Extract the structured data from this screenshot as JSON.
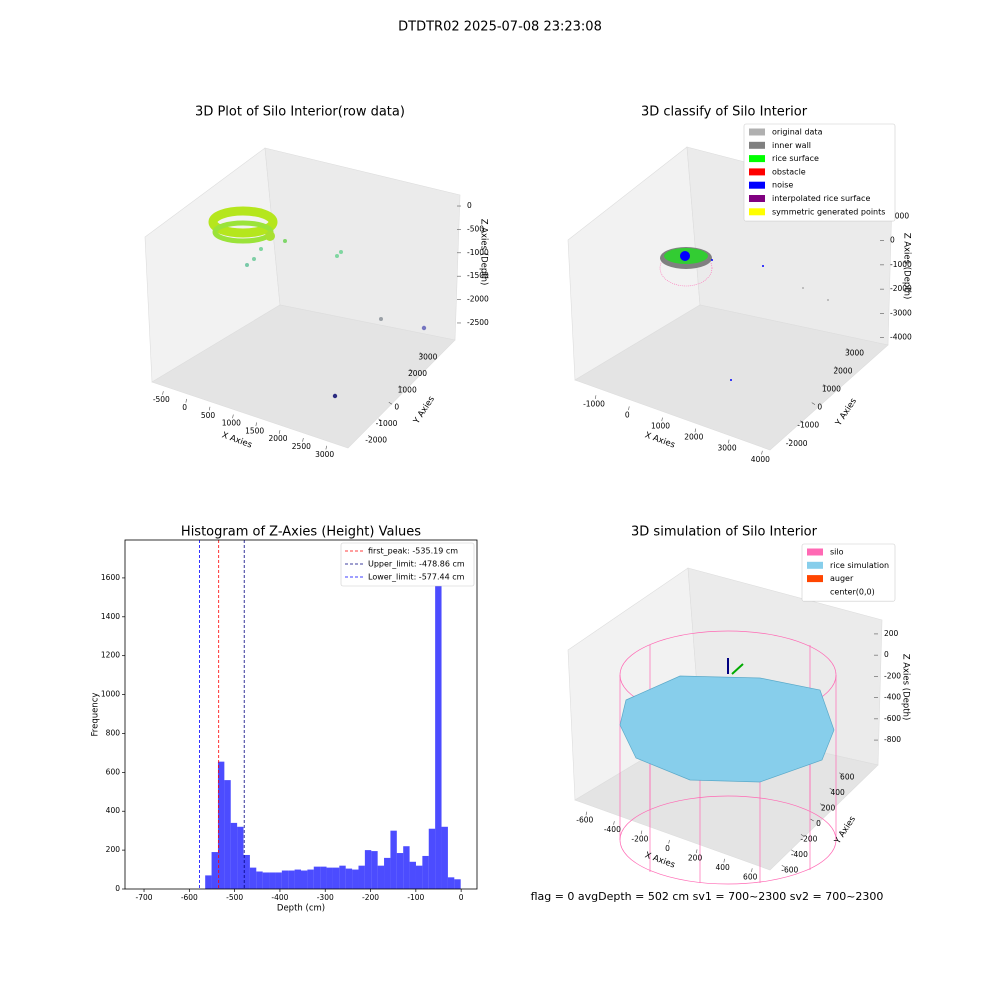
{
  "title": "DTDTR02 2025-07-08 23:23:08",
  "footer": "flag = 0     avgDepth = 502 cm  sv1 = 700~2300  sv2 = 700~2300",
  "chart_data": [
    {
      "type": "scatter3d",
      "title": "3D Plot of Silo Interior(row data)",
      "x_label": "X Axies",
      "y_label": "Y Axies",
      "z_label": "Z Axies (Depth)",
      "xlim": [
        -700,
        3200
      ],
      "xticks": [
        -500,
        0,
        500,
        1000,
        1500,
        2000,
        2500,
        3000
      ],
      "ylim": [
        -2400,
        3400
      ],
      "yticks": [
        -2000,
        -1000,
        0,
        1000,
        2000,
        3000
      ],
      "zlim": [
        -2800,
        150
      ],
      "zticks": [
        0,
        -500,
        -1000,
        -1500,
        -2000,
        -2500
      ]
    },
    {
      "type": "scatter3d",
      "title": "3D classify of Silo Interior",
      "x_label": "X Axies",
      "y_label": "Y Axies",
      "z_label": "Z Axies (Depth)",
      "xlim": [
        -1300,
        4200
      ],
      "xticks": [
        -1000,
        0,
        1000,
        2000,
        3000,
        4000
      ],
      "ylim": [
        -2400,
        3300
      ],
      "yticks": [
        -2000,
        -1000,
        0,
        1000,
        2000,
        3000
      ],
      "zlim": [
        -4300,
        1300
      ],
      "zticks": [
        1000,
        0,
        -1000,
        -2000,
        -3000,
        -4000
      ],
      "legend": [
        {
          "name": "original data",
          "color": "#b0b0b0"
        },
        {
          "name": "inner wall",
          "color": "#808080"
        },
        {
          "name": "rice surface",
          "color": "#00ff00"
        },
        {
          "name": "obstacle",
          "color": "#ff0000"
        },
        {
          "name": "noise",
          "color": "#0000ff"
        },
        {
          "name": "interpolated rice surface",
          "color": "#800080"
        },
        {
          "name": "symmetric generated points",
          "color": "#ffff00"
        }
      ]
    },
    {
      "type": "histogram",
      "title": "Histogram of Z-Axies (Height) Values",
      "x_label": "Depth (cm)",
      "y_label": "Frequency",
      "color": "#0000ff",
      "bins": [
        -565,
        -550.9,
        -536.8,
        -522.7,
        -508.6,
        -494.5,
        -480.4,
        -466.3,
        -452.2,
        -438.1,
        -424,
        -409.9,
        -395.8,
        -381.7,
        -367.6,
        -353.5,
        -339.4,
        -325.3,
        -311.2,
        -297.1,
        -283,
        -268.9,
        -254.8,
        -240.7,
        -226.6,
        -212.5,
        -198.4,
        -184.3,
        -170.2,
        -156.1,
        -142,
        -127.9,
        -113.8,
        -99.7,
        -85.6,
        -71.5,
        -57.4,
        -43.3,
        -29.2,
        -15.1,
        -1
      ],
      "values": [
        70,
        190,
        655,
        560,
        340,
        320,
        175,
        110,
        90,
        85,
        85,
        85,
        95,
        95,
        100,
        95,
        100,
        115,
        115,
        110,
        110,
        120,
        105,
        100,
        120,
        200,
        195,
        120,
        160,
        300,
        185,
        220,
        140,
        120,
        170,
        310,
        1720,
        320,
        60,
        50
      ],
      "xlim": [
        -742,
        35
      ],
      "xticks": [
        -700,
        -600,
        -500,
        -400,
        -300,
        -200,
        -100,
        0
      ],
      "ylim": [
        0,
        1795
      ],
      "yticks": [
        0,
        200,
        400,
        600,
        800,
        1000,
        1200,
        1400,
        1600
      ],
      "lines": [
        {
          "label": "first_peak: -535.19 cm",
          "value": -535.19,
          "color": "#ff0000"
        },
        {
          "label": "Upper_limit: -478.86 cm",
          "value": -478.86,
          "color": "#000080"
        },
        {
          "label": "Lower_limit: -577.44 cm",
          "value": -577.44,
          "color": "#0000ff"
        }
      ]
    },
    {
      "type": "scatter3d",
      "title": "3D simulation of Silo Interior",
      "x_label": "X Axies",
      "y_label": "Y Axies",
      "z_label": "Z Axies (Depth)",
      "xlim": [
        -700,
        700
      ],
      "xticks": [
        -600,
        -400,
        -200,
        0,
        200,
        400,
        600
      ],
      "ylim": [
        -700,
        700
      ],
      "yticks": [
        -600,
        -400,
        -200,
        0,
        200,
        400,
        600
      ],
      "zlim": [
        -950,
        350
      ],
      "zticks": [
        200,
        0,
        -200,
        -400,
        -600,
        -800
      ],
      "legend": [
        {
          "name": "silo",
          "color": "#ff69b4"
        },
        {
          "name": "rice simulation",
          "color": "#87ceeb"
        },
        {
          "name": "auger",
          "color": "#ff4500"
        },
        {
          "name": "center(0,0)",
          "color": "#ffffff"
        }
      ]
    }
  ]
}
